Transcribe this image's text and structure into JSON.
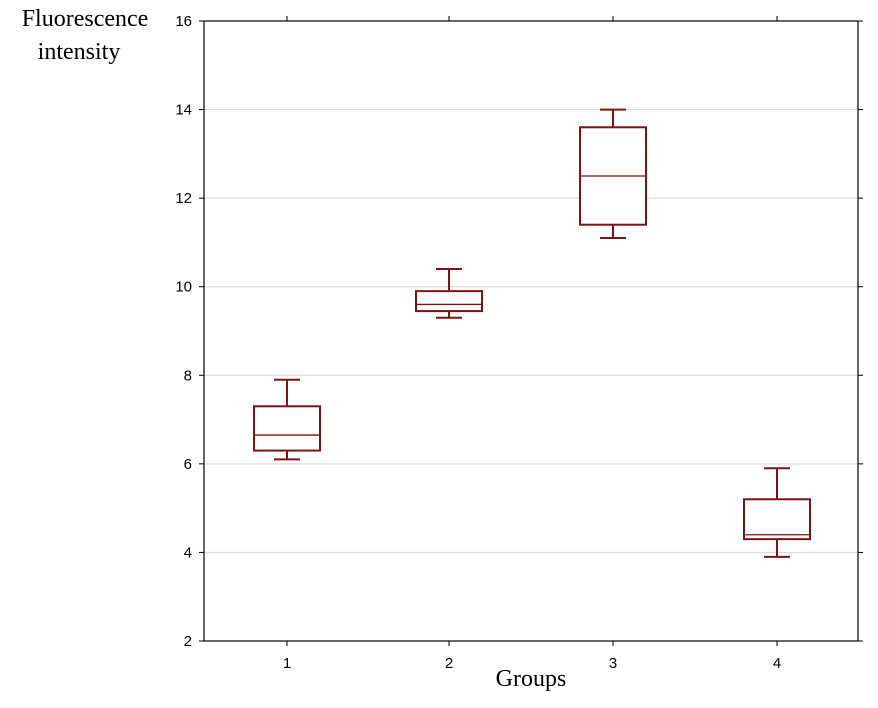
{
  "chart_data": {
    "type": "box",
    "xlabel": "Groups",
    "ylabel_lines": [
      "Fluorescence",
      "intensity"
    ],
    "ylim": [
      2,
      16
    ],
    "yticks": [
      2,
      4,
      6,
      8,
      10,
      12,
      14,
      16
    ],
    "categories": [
      "1",
      "2",
      "3",
      "4"
    ],
    "grid": "horizontal",
    "box_color": "#7b1414",
    "grid_color": "#dcdcdc",
    "boxes": [
      {
        "group": "1",
        "whisker_low": 6.1,
        "q1": 6.3,
        "median": 6.65,
        "q3": 7.3,
        "whisker_high": 7.9
      },
      {
        "group": "2",
        "whisker_low": 9.3,
        "q1": 9.45,
        "median": 9.6,
        "q3": 9.9,
        "whisker_high": 10.4
      },
      {
        "group": "3",
        "whisker_low": 11.1,
        "q1": 11.4,
        "median": 12.5,
        "q3": 13.6,
        "whisker_high": 14.0
      },
      {
        "group": "4",
        "whisker_low": 3.9,
        "q1": 4.3,
        "median": 4.4,
        "q3": 5.2,
        "whisker_high": 5.9
      }
    ]
  }
}
